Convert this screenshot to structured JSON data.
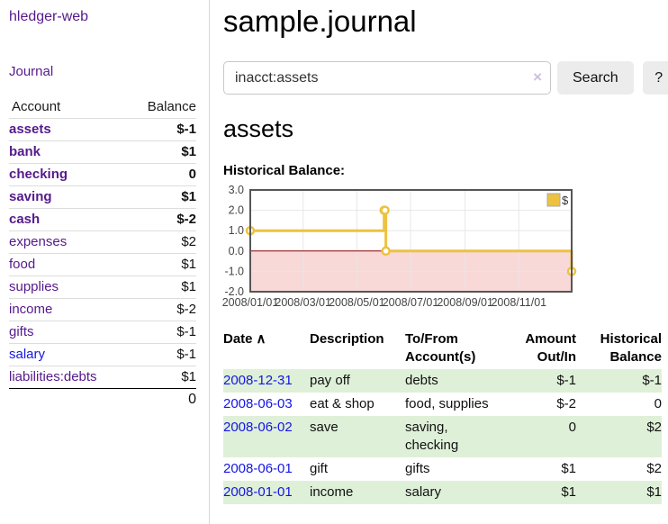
{
  "colors": {
    "accent_purple": "#551a8b",
    "link_blue": "#1515e6",
    "negative_dark": "#8b0000",
    "negative_light": "#c06a6a",
    "row_highlight_green": "#dff0d8",
    "button_gray": "#ececec",
    "series_gold": "#edc240",
    "chart_negative_fill": "#f9d8d8",
    "chart_zero_line": "#8b0000",
    "chart_border": "#565656",
    "gridline": "#e7e7e7"
  },
  "sidebar": {
    "brand": "hledger-web",
    "nav": {
      "journal_label": "Journal"
    },
    "accounts": {
      "headers": {
        "account": "Account",
        "balance": "Balance"
      },
      "rows": [
        {
          "name": "assets",
          "depth": 1,
          "bold": true,
          "balance": "$-1",
          "neg": "dark"
        },
        {
          "name": "bank",
          "depth": 2,
          "bold": true,
          "balance": "$1",
          "neg": null
        },
        {
          "name": "checking",
          "depth": 3,
          "bold": true,
          "balance": "0",
          "neg": null
        },
        {
          "name": "saving",
          "depth": 3,
          "bold": true,
          "balance": "$1",
          "neg": null
        },
        {
          "name": "cash",
          "depth": 2,
          "bold": true,
          "balance": "$-2",
          "neg": "dark"
        },
        {
          "name": "expenses",
          "depth": 1,
          "bold": false,
          "balance": "$2",
          "neg": null
        },
        {
          "name": "food",
          "depth": 2,
          "bold": false,
          "balance": "$1",
          "neg": null
        },
        {
          "name": "supplies",
          "depth": 2,
          "bold": false,
          "balance": "$1",
          "neg": null
        },
        {
          "name": "income",
          "depth": 1,
          "bold": false,
          "balance": "$-2",
          "neg": "light"
        },
        {
          "name": "gifts",
          "depth": 2,
          "bold": false,
          "balance": "$-1",
          "neg": "light"
        },
        {
          "name": "salary",
          "depth": 2,
          "bold": false,
          "balance": "$-1",
          "neg": "light",
          "blue": true
        },
        {
          "name": "liabilities:debts",
          "depth": 1,
          "bold": false,
          "balance": "$1",
          "neg": null
        }
      ],
      "total": "0"
    }
  },
  "main": {
    "title": "sample.journal",
    "search": {
      "value": "inacct:assets",
      "clear_icon": "×",
      "button_label": "Search",
      "help_label": "?"
    },
    "account_heading": "assets",
    "chart_label": "Historical Balance:"
  },
  "chart_data": {
    "type": "line",
    "step": true,
    "title": "Historical Balance:",
    "series": [
      {
        "name": "$",
        "color": "#edc240",
        "points": [
          [
            "2008-01-01",
            1
          ],
          [
            "2008-06-01",
            2
          ],
          [
            "2008-06-02",
            2
          ],
          [
            "2008-06-03",
            0
          ],
          [
            "2008-12-31",
            -1
          ]
        ]
      }
    ],
    "x_range": [
      "2008-01-01",
      "2008-12-31"
    ],
    "x_ticks": [
      {
        "date": "2008-01-01",
        "label": "2008/01/01"
      },
      {
        "date": "2008-03-01",
        "label": "2008/03/01"
      },
      {
        "date": "2008-05-01",
        "label": "2008/05/01"
      },
      {
        "date": "2008-07-01",
        "label": "2008/07/01"
      },
      {
        "date": "2008-09-01",
        "label": "2008/09/01"
      },
      {
        "date": "2008-11-01",
        "label": "2008/11/01"
      }
    ],
    "y_ticks": [
      {
        "v": 3,
        "label": "3.0"
      },
      {
        "v": 2,
        "label": "2.0"
      },
      {
        "v": 1,
        "label": "1.0"
      },
      {
        "v": 0,
        "label": "0.0"
      },
      {
        "v": -1,
        "label": "-1.0"
      },
      {
        "v": -2,
        "label": "-2.0"
      }
    ],
    "ylim": [
      -2,
      3
    ],
    "grid": true,
    "legend": {
      "label": "$",
      "position": "top-right"
    }
  },
  "register": {
    "headers": {
      "date": "Date",
      "sort_icon": "∧",
      "description": "Description",
      "accounts": "To/From Account(s)",
      "amount": "Amount Out/In",
      "balance": "Historical Balance"
    },
    "rows": [
      {
        "date": "2008-12-31",
        "description": "pay off",
        "accounts": "debts",
        "amount": "$-1",
        "balance": "$-1",
        "amount_neg": true,
        "balance_neg": true,
        "highlight": true
      },
      {
        "date": "2008-06-03",
        "description": "eat & shop",
        "accounts": "food, supplies",
        "amount": "$-2",
        "balance": "0",
        "amount_neg": true,
        "balance_neg": false,
        "highlight": false
      },
      {
        "date": "2008-06-02",
        "description": "save",
        "accounts": "saving, checking",
        "amount": "0",
        "balance": "$2",
        "amount_neg": false,
        "balance_neg": false,
        "highlight": true
      },
      {
        "date": "2008-06-01",
        "description": "gift",
        "accounts": "gifts",
        "amount": "$1",
        "balance": "$2",
        "amount_neg": false,
        "balance_neg": false,
        "highlight": false
      },
      {
        "date": "2008-01-01",
        "description": "income",
        "accounts": "salary",
        "amount": "$1",
        "balance": "$1",
        "amount_neg": false,
        "balance_neg": false,
        "highlight": true
      }
    ]
  }
}
